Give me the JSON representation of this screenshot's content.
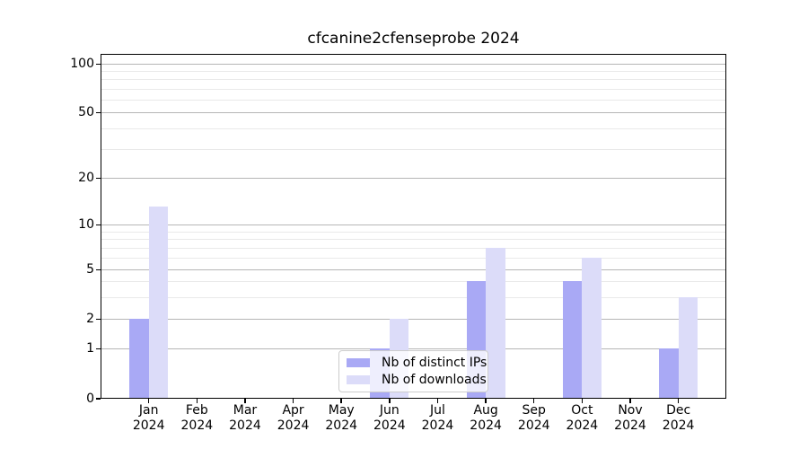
{
  "title": "cfcanine2cfenseprobe 2024",
  "colors": {
    "bar_distinct_ips": "#a9a9f5",
    "bar_downloads": "#dcdcf9",
    "grid_major": "#b6b6b6",
    "grid_minor": "#e9e9e9",
    "spine": "#000000",
    "legend_border": "#cccccc"
  },
  "chart_data": {
    "type": "bar",
    "title": "cfcanine2cfenseprobe 2024",
    "categories": [
      "Jan",
      "Feb",
      "Mar",
      "Apr",
      "May",
      "Jun",
      "Jul",
      "Aug",
      "Sep",
      "Oct",
      "Nov",
      "Dec"
    ],
    "x_year": "2024",
    "series": [
      {
        "name": "Nb of distinct IPs",
        "color": "#a9a9f5",
        "values": [
          2,
          0,
          0,
          0,
          0,
          1,
          0,
          4,
          0,
          4,
          0,
          1
        ]
      },
      {
        "name": "Nb of downloads",
        "color": "#dcdcf9",
        "values": [
          13,
          0,
          0,
          0,
          0,
          2,
          0,
          7,
          0,
          6,
          0,
          3
        ]
      }
    ],
    "xlabel": "",
    "ylabel": "",
    "y_axis": {
      "scale": "symlog",
      "ticks": [
        0,
        1,
        2,
        5,
        10,
        20,
        50,
        100
      ],
      "ylim": [
        0,
        100
      ]
    },
    "grid": "both",
    "legend_position": "lower center"
  }
}
